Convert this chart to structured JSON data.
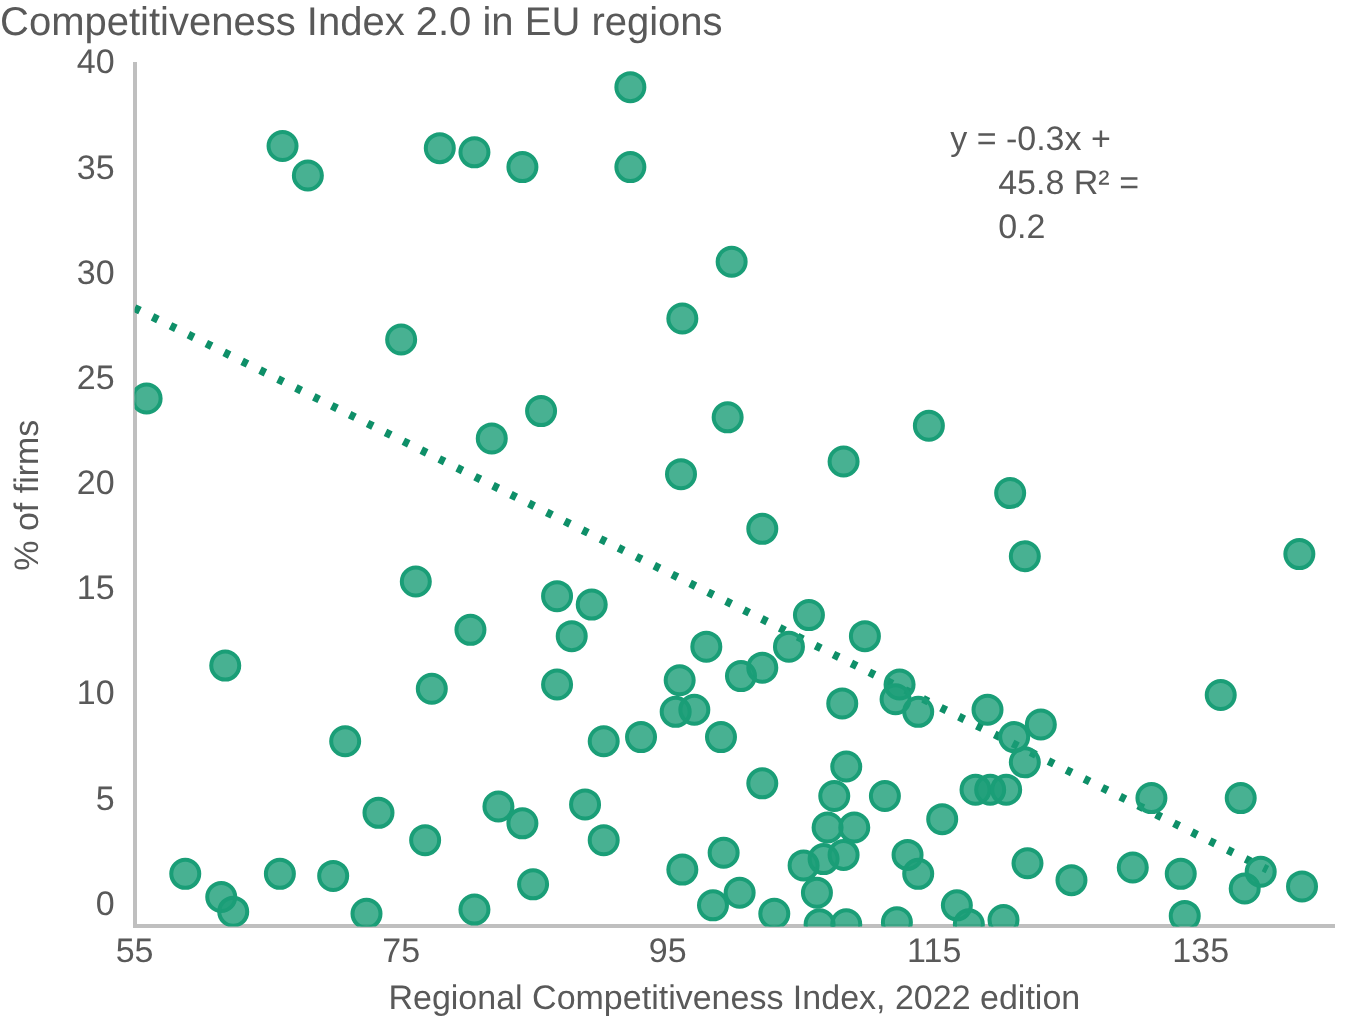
{
  "chart_data": {
    "type": "scatter",
    "title": "Competitiveness Index 2.0 in EU regions",
    "xlabel": "Regional Competitiveness Index, 2022 edition",
    "ylabel": "% of firms",
    "xlim": [
      55,
      145
    ],
    "xticks": [
      55,
      75,
      95,
      115,
      135
    ],
    "ylim": [
      -1,
      40
    ],
    "yticks": [
      0,
      5,
      10,
      15,
      20,
      25,
      30,
      35,
      40
    ],
    "grid": false,
    "legend": false,
    "marker": "circle",
    "annotations": [
      "y = -0.3x + 45.8 R² = 0.2"
    ],
    "series": [
      {
        "type": "scatter",
        "color": "#1a9e77",
        "x": [
          55.9,
          58.8,
          61.5,
          62.4,
          61.8,
          65.9,
          66.1,
          68,
          69.9,
          70.8,
          72.4,
          73.3,
          75,
          76.1,
          77.3,
          76.8,
          77.9,
          80.2,
          80.5,
          80.5,
          81.8,
          82.3,
          84.1,
          84.1,
          84.9,
          85.5,
          86.7,
          86.7,
          87.8,
          89.3,
          88.8,
          90.2,
          90.2,
          92.2,
          92.2,
          93,
          96.1,
          96,
          95.9,
          95.6,
          96.1,
          97,
          97.9,
          99,
          98.4,
          99.2,
          99.8,
          99.5,
          100.5,
          100.4,
          102.1,
          102.1,
          102.1,
          103,
          104.1,
          105.6,
          105.2,
          106.2,
          106.4,
          106.7,
          107,
          107.5,
          108.1,
          108.2,
          108.2,
          108.4,
          108.4,
          109,
          109.8,
          111.3,
          112.2,
          112.4,
          112.1,
          113,
          113.8,
          113.8,
          114.6,
          115.6,
          116.7,
          117.6,
          118.1,
          119,
          119.2,
          120.2,
          120.4,
          120.7,
          121,
          121.8,
          121.8,
          122,
          123,
          125.3,
          129.9,
          131.3,
          133.5,
          133.8,
          136.5,
          138,
          138.3,
          139.5,
          142.4,
          142.6
        ],
        "values": [
          24.1,
          1.5,
          0.4,
          -0.3,
          11.4,
          1.5,
          36.1,
          34.7,
          1.4,
          7.8,
          -0.4,
          4.4,
          26.9,
          15.4,
          10.3,
          3.1,
          36,
          13.1,
          35.8,
          -0.2,
          22.2,
          4.7,
          3.9,
          35.1,
          1,
          23.5,
          14.7,
          10.5,
          12.8,
          14.3,
          4.8,
          7.8,
          3.1,
          38.9,
          35.1,
          8,
          27.9,
          20.5,
          10.7,
          9.2,
          1.7,
          9.3,
          12.3,
          8,
          0,
          2.5,
          30.6,
          23.2,
          10.9,
          0.6,
          17.9,
          11.3,
          5.8,
          -0.4,
          12.3,
          13.8,
          1.9,
          0.6,
          -0.9,
          2.2,
          3.7,
          5.2,
          9.6,
          21.1,
          2.4,
          6.6,
          -0.9,
          3.7,
          12.8,
          5.2,
          -0.8,
          10.5,
          9.8,
          2.4,
          9.2,
          1.5,
          22.8,
          4.1,
          0,
          -0.9,
          5.5,
          9.3,
          5.5,
          -0.7,
          5.5,
          19.6,
          8,
          16.6,
          6.8,
          2,
          8.6,
          1.2,
          1.8,
          5.1,
          1.5,
          -0.5,
          10,
          5.1,
          0.8,
          1.6,
          16.7,
          0.9
        ]
      },
      {
        "type": "line",
        "color": "#0e8f68",
        "x": [
          55,
          140
        ],
        "values": [
          28.4,
          1.7
        ],
        "line_style": "dotted",
        "marker": "none"
      }
    ]
  }
}
